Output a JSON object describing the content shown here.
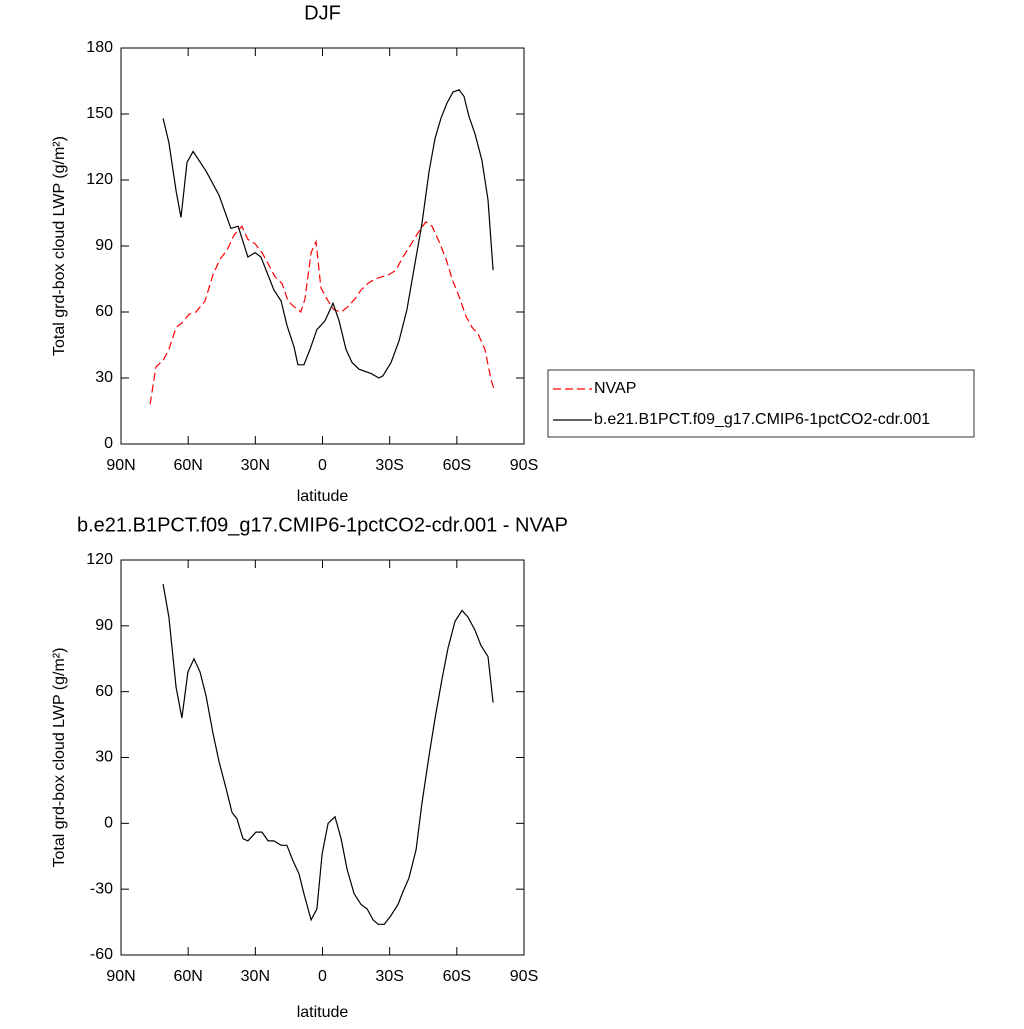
{
  "chart_data": [
    {
      "type": "line",
      "title": "DJF",
      "x_label": "latitude",
      "y_label": "Total grd-box cloud LWP (g/m²)",
      "xlim": [
        90,
        -90
      ],
      "ylim": [
        0,
        180
      ],
      "xticks": [
        {
          "value": 90,
          "label": "90N"
        },
        {
          "value": 60,
          "label": "60N"
        },
        {
          "value": 30,
          "label": "30N"
        },
        0,
        {
          "value": -30,
          "label": "30S"
        },
        {
          "value": -60,
          "label": "60S"
        },
        {
          "value": -90,
          "label": "90S"
        }
      ],
      "yticks": [
        0,
        30,
        60,
        90,
        120,
        150,
        180
      ],
      "legend": "right",
      "series": [
        {
          "name": "NVAP",
          "color": "#ff0000",
          "dashed": true,
          "x": [
            77,
            74.4,
            71.2,
            68.6,
            65.4,
            62.8,
            59.6,
            56.5,
            52.5,
            48.9,
            45.8,
            42.7,
            39.5,
            36,
            33.3,
            30.1,
            27,
            24.3,
            21.2,
            18.1,
            15.4,
            12.3,
            9.7,
            7.8,
            5.1,
            2.9,
            0.7,
            -2.5,
            -5.1,
            -8.3,
            -10.9,
            -14.5,
            -17.2,
            -20.3,
            -23.4,
            -26.5,
            -29.7,
            -32.8,
            -35.9,
            -39.1,
            -42.7,
            -46.2,
            -48.9,
            -52.1,
            -55.2,
            -57.9,
            -61,
            -64.1,
            -66.8,
            -69.5,
            -72.6,
            -75.3,
            -76.6
          ],
          "values": [
            18,
            35,
            38,
            43,
            53,
            55,
            59,
            60,
            65,
            77,
            84,
            88,
            95,
            99,
            93,
            91,
            87,
            82,
            76,
            73,
            65,
            62,
            60,
            66,
            87,
            92,
            71,
            65,
            61,
            60,
            62,
            66,
            70,
            73,
            75,
            76,
            77,
            79,
            85,
            90,
            96,
            101,
            99,
            92,
            84,
            75,
            67,
            58,
            53,
            50,
            43,
            29,
            25
          ]
        },
        {
          "name": "b.e21.B1PCT.f09_g17.CMIP6-1pctCO2-cdr.001",
          "color": "#000000",
          "dashed": false,
          "x": [
            71.2,
            68.6,
            65.4,
            63.2,
            60.5,
            57.8,
            52,
            46.2,
            40.9,
            37.7,
            33.3,
            30.1,
            27.5,
            21.7,
            18.5,
            15.9,
            12.7,
            11,
            8.3,
            5.6,
            2.5,
            -1.1,
            -4.7,
            -7.4,
            -10.5,
            -13.2,
            -16.3,
            -21.7,
            -25.2,
            -27,
            -30.6,
            -34.2,
            -37.7,
            -41.8,
            -44.4,
            -47.6,
            -50.3,
            -52.9,
            -55.6,
            -58.3,
            -61,
            -63.2,
            -65.4,
            -68.1,
            -71.2,
            -73.9,
            -76.2
          ],
          "values": [
            148,
            137,
            115,
            103,
            128,
            133,
            124,
            113,
            98,
            99,
            85,
            87,
            85,
            70,
            65,
            54,
            44,
            36,
            36,
            43,
            52,
            56,
            64,
            56,
            43,
            37,
            34,
            32,
            30,
            31,
            37,
            47,
            61,
            85,
            100,
            124,
            139,
            148,
            155,
            160,
            161,
            158,
            149,
            141,
            129,
            111,
            79
          ]
        }
      ]
    },
    {
      "type": "line",
      "title": "b.e21.B1PCT.f09_g17.CMIP6-1pctCO2-cdr.001 - NVAP",
      "x_label": "latitude",
      "y_label": "Total grd-box cloud LWP (g/m²)",
      "xlim": [
        90,
        -90
      ],
      "ylim": [
        -60,
        120
      ],
      "xticks": [
        {
          "value": 90,
          "label": "90N"
        },
        {
          "value": 60,
          "label": "60N"
        },
        {
          "value": 30,
          "label": "30N"
        },
        0,
        {
          "value": -30,
          "label": "30S"
        },
        {
          "value": -60,
          "label": "60S"
        },
        {
          "value": -90,
          "label": "90S"
        }
      ],
      "yticks": [
        -60,
        -30,
        0,
        30,
        60,
        90,
        120
      ],
      "series": [
        {
          "color": "#000000",
          "dashed": false,
          "x": [
            71.2,
            68.6,
            65.4,
            62.8,
            60.1,
            57.4,
            54.7,
            52,
            48.9,
            46.2,
            43.1,
            40.4,
            38.2,
            35.5,
            33.3,
            29.7,
            27,
            24.3,
            21.7,
            18.5,
            15.9,
            13.2,
            10.5,
            8.3,
            5.1,
            2.5,
            0.2,
            -2.5,
            -5.6,
            -8.3,
            -11,
            -14.1,
            -17.2,
            -19.9,
            -22.6,
            -24.9,
            -27.6,
            -30.6,
            -33.7,
            -36,
            -38.6,
            -41.8,
            -44.4,
            -47.6,
            -50.3,
            -53.4,
            -56.1,
            -59.2,
            -62.3,
            -65,
            -68.1,
            -70.8,
            -73.9,
            -76.2
          ],
          "values": [
            109,
            94,
            62,
            48,
            69,
            75,
            69,
            58,
            41,
            28,
            16,
            5,
            2,
            -7,
            -8,
            -4,
            -4,
            -8,
            -8,
            -10,
            -10,
            -17,
            -23,
            -32,
            -44,
            -39,
            -14,
            0,
            3,
            -7,
            -21,
            -32,
            -37,
            -39,
            -44,
            -46,
            -46,
            -42,
            -37,
            -31,
            -25,
            -12,
            9,
            31,
            48,
            66,
            80,
            92,
            97,
            94,
            88,
            81,
            76,
            55
          ]
        }
      ]
    }
  ]
}
